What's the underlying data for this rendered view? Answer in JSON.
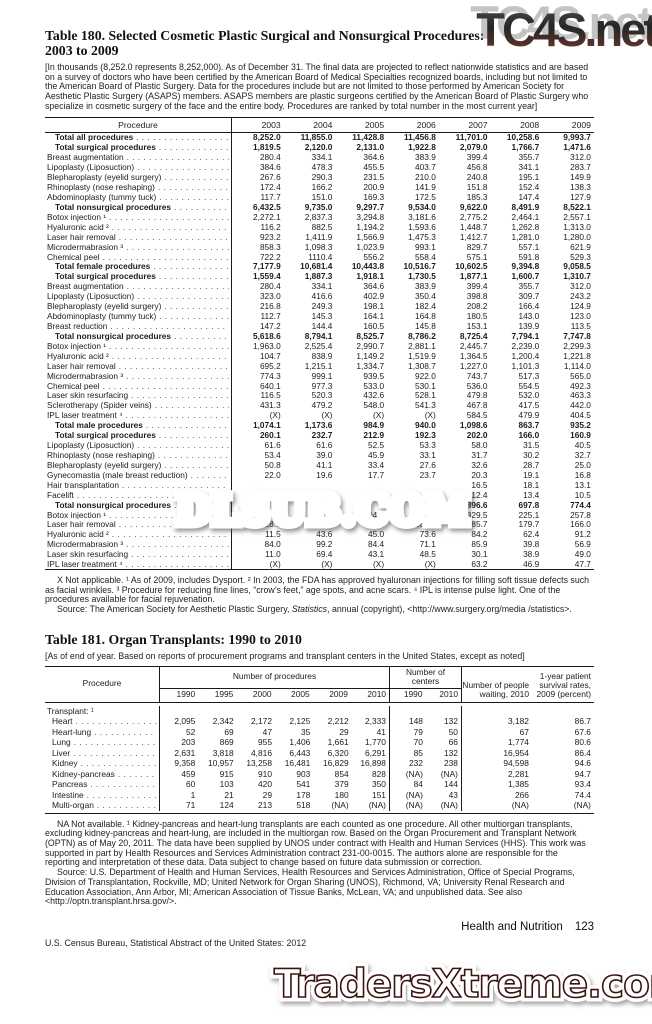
{
  "watermarks": {
    "top": "TC4S.net",
    "middle": "DLSUB.COM",
    "bottom": "TradersXtreme.com"
  },
  "table180": {
    "title_line1": "Table 180. Selected Cosmetic Plastic Surgical and Nonsurgical Procedures:",
    "title_line2": "2003 to 2009",
    "note": "[In thousands (8,252.0 represents 8,252,000). As of December 31. The final data are projected to reflect nationwide statistics and are based on a survey of doctors who have been certified by the American Board of Medical Specialties recognized boards, including but not limited to the American Board of Plastic Surgery. Data for the procedures include but are not limited to those performed by American Society for Aesthetic Plastic Surgery (ASAPS) members. ASAPS members are plastic surgeons certified by the American Board of Plastic Surgery who specialize in cosmetic surgery of the face and the entire body. Procedures are ranked by total number in the most current year]",
    "header_label": "Procedure",
    "columns": [
      "2003",
      "2004",
      "2005",
      "2006",
      "2007",
      "2008",
      "2009"
    ],
    "rows": [
      {
        "label": "Total all procedures",
        "b": true,
        "values": [
          "8,252.0",
          "11,855.0",
          "11,428.8",
          "11,456.8",
          "11,701.0",
          "10,258.6",
          "9,993.7"
        ]
      },
      {
        "label": "Total surgical procedures",
        "b": true,
        "values": [
          "1,819.5",
          "2,120.0",
          "2,131.0",
          "1,922.8",
          "2,079.0",
          "1,766.7",
          "1,471.6"
        ]
      },
      {
        "label": "Breast augmentation",
        "b": false,
        "values": [
          "280.4",
          "334.1",
          "364.6",
          "383.9",
          "399.4",
          "355.7",
          "312.0"
        ]
      },
      {
        "label": "Lipoplasty (Liposuction)",
        "b": false,
        "values": [
          "384.6",
          "478.3",
          "455.5",
          "403.7",
          "456.8",
          "341.1",
          "283.7"
        ]
      },
      {
        "label": "Blepharoplasty (eyelid surgery)",
        "b": false,
        "values": [
          "267.6",
          "290.3",
          "231.5",
          "210.0",
          "240.8",
          "195.1",
          "149.9"
        ]
      },
      {
        "label": "Rhinoplasty (nose reshaping)",
        "b": false,
        "values": [
          "172.4",
          "166.2",
          "200.9",
          "141.9",
          "151.8",
          "152.4",
          "138.3"
        ]
      },
      {
        "label": "Abdominoplasty (tummy tuck)",
        "b": false,
        "values": [
          "117.7",
          "151.0",
          "169.3",
          "172.5",
          "185.3",
          "147.4",
          "127.9"
        ]
      },
      {
        "label": "Total nonsurgical procedures",
        "b": true,
        "values": [
          "6,432.5",
          "9,735.0",
          "9,297.7",
          "9,534.0",
          "9,622.0",
          "8,491.9",
          "8,522.1"
        ]
      },
      {
        "label": "Botox injection ¹",
        "b": false,
        "values": [
          "2,272.1",
          "2,837.3",
          "3,294.8",
          "3,181.6",
          "2,775.2",
          "2,464.1",
          "2,557.1"
        ]
      },
      {
        "label": "Hyaluronic acid ²",
        "b": false,
        "values": [
          "116.2",
          "882.5",
          "1,194.2",
          "1,593.6",
          "1,448.7",
          "1,262.8",
          "1,313.0"
        ]
      },
      {
        "label": "Laser hair removal",
        "b": false,
        "values": [
          "923.2",
          "1,411.9",
          "1,566.9",
          "1,475.3",
          "1,412.7",
          "1,281.0",
          "1,280.0"
        ]
      },
      {
        "label": "Microdermabrasion ³",
        "b": false,
        "values": [
          "858.3",
          "1,098.3",
          "1,023.9",
          "993.1",
          "829.7",
          "557.1",
          "621.9"
        ]
      },
      {
        "label": "Chemical peel",
        "b": false,
        "values": [
          "722.2",
          "1110.4",
          "556.2",
          "558.4",
          "575.1",
          "591.8",
          "529.3"
        ]
      },
      {
        "label": "Total female procedures",
        "b": true,
        "values": [
          "7,177.9",
          "10,681.4",
          "10,443.8",
          "10,516.7",
          "10,602.5",
          "9,394.8",
          "9,058.5"
        ]
      },
      {
        "label": "Total surgical procedures",
        "b": true,
        "values": [
          "1,559.4",
          "1,887.3",
          "1,918.1",
          "1,730.5",
          "1,877.1",
          "1,600.7",
          "1,310.7"
        ]
      },
      {
        "label": "Breast augmentation",
        "b": false,
        "values": [
          "280.4",
          "334.1",
          "364.6",
          "383.9",
          "399.4",
          "355.7",
          "312.0"
        ]
      },
      {
        "label": "Lipoplasty (Liposuction)",
        "b": false,
        "values": [
          "323.0",
          "416.6",
          "402.9",
          "350.4",
          "398.8",
          "309.7",
          "243.2"
        ]
      },
      {
        "label": "Blepharoplasty (eyelid surgery)",
        "b": false,
        "values": [
          "216.8",
          "249.3",
          "198.1",
          "182.4",
          "208.2",
          "166.4",
          "124.9"
        ]
      },
      {
        "label": "Abdominoplasty (tummy tuck)",
        "b": false,
        "values": [
          "112.7",
          "145.3",
          "164.1",
          "164.8",
          "180.5",
          "143.0",
          "123.0"
        ]
      },
      {
        "label": "Breast reduction",
        "b": false,
        "values": [
          "147.2",
          "144.4",
          "160.5",
          "145.8",
          "153.1",
          "139.9",
          "113.5"
        ]
      },
      {
        "label": "Total nonsurgical procedures",
        "b": true,
        "values": [
          "5,618.6",
          "8,794.1",
          "8,525.7",
          "8,786.2",
          "8,725.4",
          "7,794.1",
          "7,747.8"
        ]
      },
      {
        "label": "Botox injection ¹",
        "b": false,
        "values": [
          "1,963.0",
          "2,525.4",
          "2,990.7",
          "2,881.1",
          "2,445.7",
          "2,239.0",
          "2,299.3"
        ]
      },
      {
        "label": "Hyaluronic acid ²",
        "b": false,
        "values": [
          "104.7",
          "838.9",
          "1,149.2",
          "1,519.9",
          "1,364.5",
          "1,200.4",
          "1,221.8"
        ]
      },
      {
        "label": "Laser hair removal",
        "b": false,
        "values": [
          "695.2",
          "1,215.1",
          "1,334.7",
          "1,308.7",
          "1,227.0",
          "1,101.3",
          "1,114.0"
        ]
      },
      {
        "label": "Microdermabrasion ³",
        "b": false,
        "values": [
          "774.3",
          "999.1",
          "939.5",
          "922.0",
          "743.7",
          "517.3",
          "565.0"
        ]
      },
      {
        "label": "Chemical peel",
        "b": false,
        "values": [
          "640.1",
          "977.3",
          "533.0",
          "530.1",
          "536.0",
          "554.5",
          "492.3"
        ]
      },
      {
        "label": "Laser skin resurfacing",
        "b": false,
        "values": [
          "116.5",
          "520.3",
          "432.6",
          "528.1",
          "479.8",
          "532.0",
          "463.3"
        ]
      },
      {
        "label": "Sclerotherapy (Spider veins)",
        "b": false,
        "values": [
          "431.3",
          "479.2",
          "548.0",
          "541.3",
          "467.8",
          "417.5",
          "442.0"
        ]
      },
      {
        "label": "IPL laser treatment ⁴",
        "b": false,
        "values": [
          "(X)",
          "(X)",
          "(X)",
          "(X)",
          "584.5",
          "479.9",
          "404.5"
        ]
      },
      {
        "label": "Total male procedures",
        "b": true,
        "values": [
          "1,074.1",
          "1,173.6",
          "984.9",
          "940.0",
          "1,098.6",
          "863.7",
          "935.2"
        ]
      },
      {
        "label": "Total surgical procedures",
        "b": true,
        "values": [
          "260.1",
          "232.7",
          "212.9",
          "192.3",
          "202.0",
          "166.0",
          "160.9"
        ]
      },
      {
        "label": "Lipoplasty (Liposuction)",
        "b": false,
        "values": [
          "61.6",
          "61.6",
          "52.5",
          "53.3",
          "58.0",
          "31.5",
          "40.5"
        ]
      },
      {
        "label": "Rhinoplasty (nose reshaping)",
        "b": false,
        "values": [
          "53.4",
          "39.0",
          "45.9",
          "33.1",
          "31.7",
          "30.2",
          "32.7"
        ]
      },
      {
        "label": "Blepharoplasty (eyelid surgery)",
        "b": false,
        "values": [
          "50.8",
          "41.1",
          "33.4",
          "27.6",
          "32.6",
          "28.7",
          "25.0"
        ]
      },
      {
        "label": "Gynecomastia (male breast reduction)",
        "b": false,
        "values": [
          "22.0",
          "19.6",
          "17.7",
          "23.7",
          "20.3",
          "19.1",
          "16.8"
        ]
      },
      {
        "label": "Hair transplantation",
        "b": false,
        "values": [
          "",
          "",
          "",
          "",
          "16.5",
          "18.1",
          "13.1"
        ]
      },
      {
        "label": "Facelift",
        "b": false,
        "values": [
          "",
          "",
          "",
          "",
          "12.4",
          "13.4",
          "10.5"
        ]
      },
      {
        "label": "Total nonsurgical procedures",
        "b": true,
        "values": [
          "",
          "",
          "",
          "",
          "896.6",
          "697.8",
          "774.4"
        ]
      },
      {
        "label": "Botox injection ¹",
        "b": false,
        "values": [
          "309.1",
          "311.9",
          "304.1",
          "300.5",
          "329.5",
          "225.1",
          "257.8"
        ]
      },
      {
        "label": "Laser hair removal",
        "b": false,
        "values": [
          "228.0",
          "196.8",
          "232.2",
          "166.6",
          "185.7",
          "179.7",
          "166.0"
        ]
      },
      {
        "label": "Hyaluronic acid ²",
        "b": false,
        "values": [
          "11.5",
          "43.6",
          "45.0",
          "73.6",
          "84.2",
          "62.4",
          "91.2"
        ]
      },
      {
        "label": "Microdermabrasion ³",
        "b": false,
        "values": [
          "84.0",
          "99.2",
          "84.4",
          "71.1",
          "85.9",
          "39.8",
          "56.9"
        ]
      },
      {
        "label": "Laser skin resurfacing",
        "b": false,
        "values": [
          "11.0",
          "69.4",
          "43.1",
          "48.5",
          "30.1",
          "38.9",
          "49.0"
        ]
      },
      {
        "label": "IPL laser treatment ⁴",
        "b": false,
        "values": [
          "(X)",
          "(X)",
          "(X)",
          "(X)",
          "63.2",
          "46.9",
          "47.7"
        ]
      }
    ],
    "footnote": "X Not applicable. ¹ As of 2009, includes Dysport. ² In 2003, the FDA has approved hyaluronan injections for filling soft tissue defects such as facial wrinkles. ³ Procedure for reducing fine lines, “crow’s feet,” age spots, and acne scars. ⁴ IPL is intense pulse light. One of the procedures available for facial rejuvenation.",
    "source_prefix": "Source: The American Society for Aesthetic Plastic Surgery, ",
    "source_italic": "Statistics",
    "source_suffix": ", annual (copyright), <http://www.surgery.org/media /statistics>."
  },
  "table181": {
    "title": "Table 181. Organ Transplants: 1990 to 2010",
    "note": "[As of end of year. Based on reports of procurement programs and transplant centers in the United States, except as noted]",
    "header": {
      "procedure": "Procedure",
      "procedures_group": "Number of procedures",
      "proc_years": [
        "1990",
        "1995",
        "2000",
        "2005",
        "2009",
        "2010"
      ],
      "centers_group": "Number of centers",
      "center_years": [
        "1990",
        "2010"
      ],
      "waiting": "Number of people waiting, 2010",
      "survival": "1-year patient survival rates, 2009 (percent)"
    },
    "rows": [
      {
        "label": "Transplant: ¹",
        "h": true,
        "values": [
          "",
          "",
          "",
          "",
          "",
          "",
          "",
          "",
          "",
          ""
        ]
      },
      {
        "label": "Heart",
        "h": false,
        "values": [
          "2,095",
          "2,342",
          "2,172",
          "2,125",
          "2,212",
          "2,333",
          "148",
          "132",
          "3,182",
          "86.7"
        ]
      },
      {
        "label": "Heart-lung",
        "h": false,
        "values": [
          "52",
          "69",
          "47",
          "35",
          "29",
          "41",
          "79",
          "50",
          "67",
          "67.6"
        ]
      },
      {
        "label": "Lung",
        "h": false,
        "values": [
          "203",
          "869",
          "955",
          "1,406",
          "1,661",
          "1,770",
          "70",
          "66",
          "1,774",
          "80.6"
        ]
      },
      {
        "label": "Liver",
        "h": false,
        "values": [
          "2,631",
          "3,818",
          "4,816",
          "6,443",
          "6,320",
          "6,291",
          "85",
          "132",
          "16,954",
          "86.4"
        ]
      },
      {
        "label": "Kidney",
        "h": false,
        "values": [
          "9,358",
          "10,957",
          "13,258",
          "16,481",
          "16,829",
          "16,898",
          "232",
          "238",
          "94,598",
          "94.6"
        ]
      },
      {
        "label": "Kidney-pancreas",
        "h": false,
        "values": [
          "459",
          "915",
          "910",
          "903",
          "854",
          "828",
          "(NA)",
          "(NA)",
          "2,281",
          "94.7"
        ]
      },
      {
        "label": "Pancreas",
        "h": false,
        "values": [
          "60",
          "103",
          "420",
          "541",
          "379",
          "350",
          "84",
          "144",
          "1,385",
          "93.4"
        ]
      },
      {
        "label": "Intestine",
        "h": false,
        "values": [
          "1",
          "21",
          "29",
          "178",
          "180",
          "151",
          "(NA)",
          "43",
          "266",
          "74.4"
        ]
      },
      {
        "label": "Multi-organ",
        "h": false,
        "values": [
          "71",
          "124",
          "213",
          "518",
          "(NA)",
          "(NA)",
          "(NA)",
          "(NA)",
          "(NA)",
          "(NA)"
        ]
      }
    ],
    "footnote": "NA Not available. ¹ Kidney-pancreas and heart-lung transplants are each counted as one procedure. All other multiorgan transplants, excluding kidney-pancreas and heart-lung, are included in the multiorgan row. Based on the Organ Procurement and Transplant Network (OPTN) as of May 20, 2011. The data have been supplied by UNOS under contract with Health and Human Services (HHS). This work was supported in part by Health Resources and Services Administration contract 231-00-0015. The authors alone are responsible for the reporting and interpretation of these data. Data subject to change based on future data submission or correction.",
    "source": "Source: U.S. Department of Health and Human Services, Health Resources and Services Administration, Office of Special Programs, Division of Transplantation, Rockville, MD; United Network for Organ Sharing (UNOS), Richmond, VA; University Renal Research and Education Association, Ann Arbor, MI; American Association of Tissue Banks, McLean, VA; and unpublished data. See also <http://optn.transplant.hrsa.gov/>."
  },
  "footer": {
    "section": "Health and Nutrition",
    "page_number": "123",
    "imprint": "U.S. Census Bureau, Statistical Abstract of the United States: 2012"
  }
}
